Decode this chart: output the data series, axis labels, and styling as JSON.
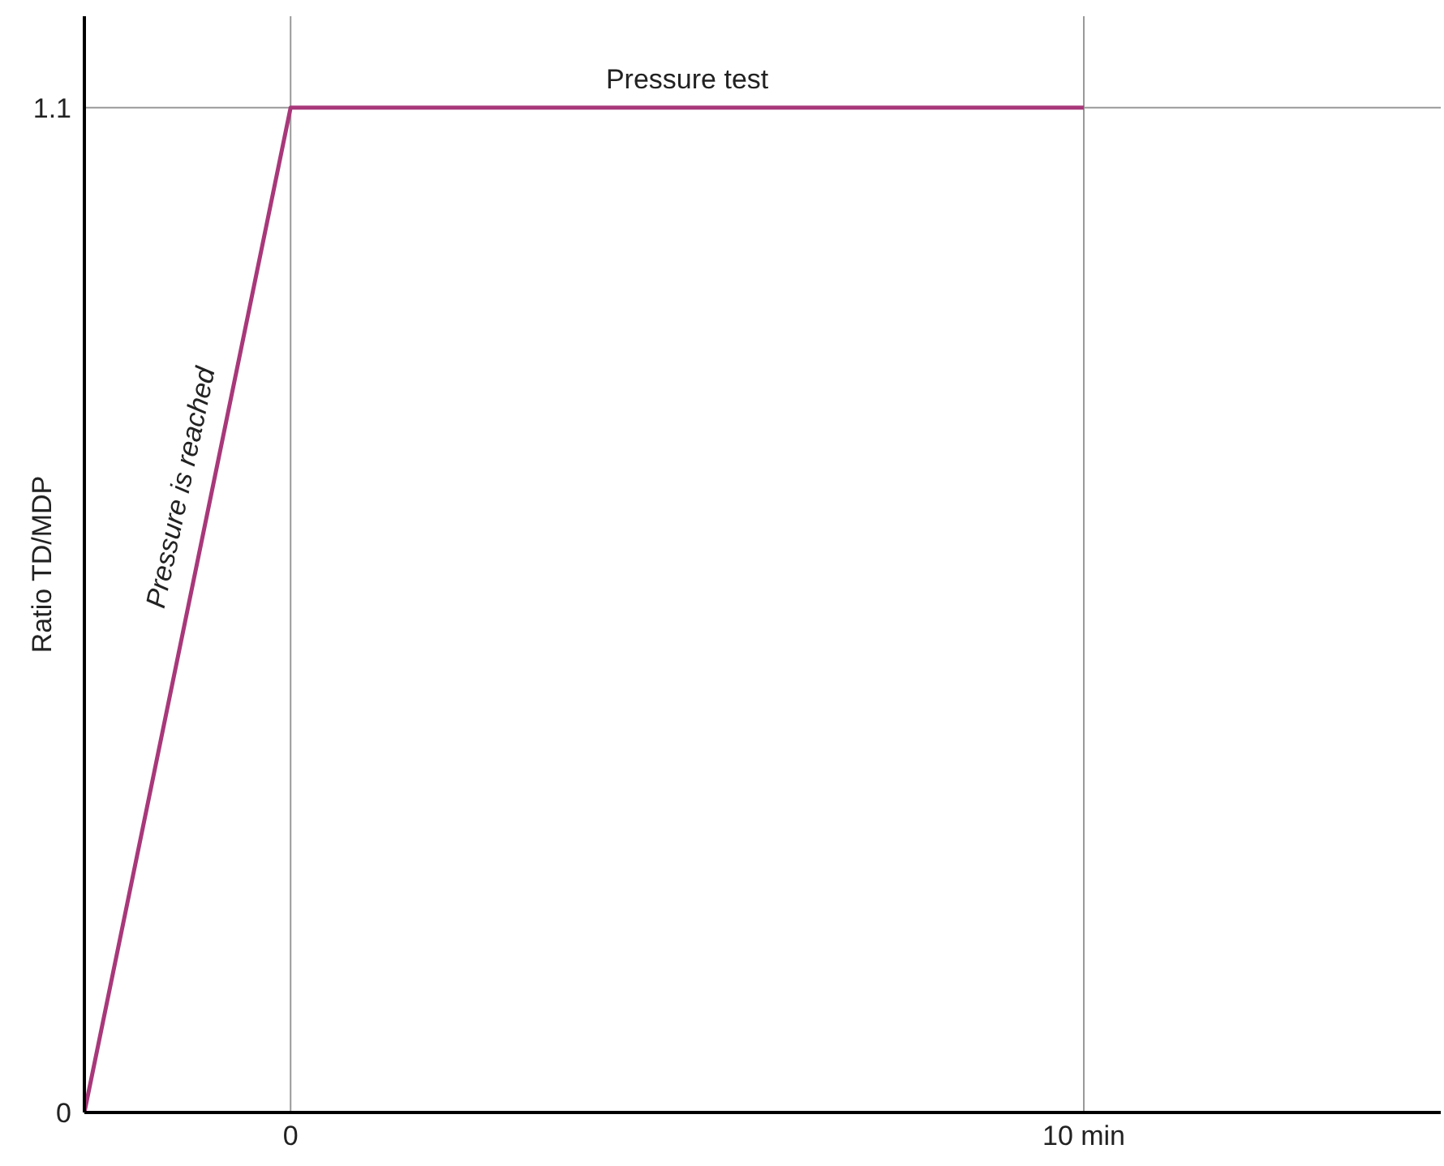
{
  "chart_data": {
    "type": "line",
    "ylabel": "Ratio TD/MDP",
    "x": [
      -2.6,
      0,
      10
    ],
    "series": [
      {
        "color": "#a8387a",
        "values": [
          0,
          1.1,
          1.1
        ]
      }
    ],
    "xlim": [
      -2.6,
      14.5
    ],
    "ylim": [
      0,
      1.2
    ],
    "xticks": [
      0,
      {
        "value": 10,
        "label": "10 min"
      }
    ],
    "yticks": [
      0,
      1.1
    ],
    "marker": "none",
    "line_style": "solid",
    "ref_lines": [
      {
        "axis": "x",
        "value": 0,
        "color": "#999999"
      },
      {
        "axis": "x",
        "value": 10,
        "color": "#999999"
      },
      {
        "axis": "y",
        "value": 1.1,
        "color": "#999999"
      }
    ],
    "annotations": [
      {
        "text": "Pressure test",
        "x": 5,
        "y": 1.1
      },
      "Pressure is reached"
    ]
  }
}
